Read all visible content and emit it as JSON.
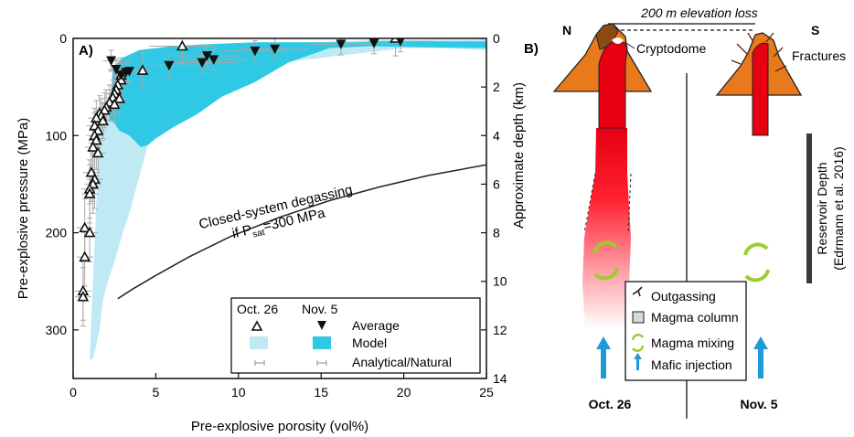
{
  "chart_data": {
    "type": "scatter",
    "panel_label": "A)",
    "xlabel": "Pre-explosive porosity (vol%)",
    "ylabel": "Pre-explosive pressure (MPa)",
    "y2label": "Approximate depth (km)",
    "xlim": [
      0,
      25
    ],
    "ylim": [
      0,
      350
    ],
    "y2lim": [
      0,
      14
    ],
    "x_ticks": [
      0,
      5,
      10,
      15,
      20,
      25
    ],
    "y_ticks": [
      0,
      100,
      200,
      300
    ],
    "y2_ticks": [
      0,
      2,
      4,
      6,
      8,
      10,
      12,
      14
    ],
    "y_inverted": true,
    "colors": {
      "oct26_model": "#bfeaf4",
      "nov5_model": "#2fc9e6",
      "curve": "#222222",
      "error_bar": "#a8a8a8"
    },
    "closed_system_curve": {
      "label_line1": "Closed-system degassing",
      "label_line2_prefix": "if P",
      "label_line2_sub": "sat",
      "label_line2_suffix": "=300 MPa",
      "x": [
        2.7,
        3.6,
        5.0,
        7.0,
        9.5,
        12.5,
        15.5,
        18.5,
        21.5,
        25.0
      ],
      "y": [
        268,
        258,
        244,
        225,
        204,
        184,
        167,
        153,
        141,
        130
      ]
    },
    "oct26_model_envelope": {
      "x": [
        1.0,
        1.6,
        2.3,
        3.0,
        4.0,
        5.0,
        7.0,
        10.0,
        14.0,
        18.0,
        25.0,
        25.0,
        22.0,
        20.0,
        18.0,
        15.0,
        12.0,
        9.0,
        7.0,
        5.0,
        4.5,
        4.2,
        3.8,
        3.4,
        3.0,
        2.5,
        2.1,
        1.8,
        1.6,
        1.2
      ],
      "y": [
        330,
        90,
        50,
        35,
        20,
        15,
        10,
        6,
        4,
        2,
        1,
        12,
        10,
        10,
        14,
        20,
        26,
        36,
        55,
        78,
        110,
        130,
        155,
        180,
        200,
        230,
        250,
        270,
        300,
        330
      ]
    },
    "nov5_model_envelope": {
      "x": [
        2.2,
        2.4,
        3.0,
        4.0,
        6.0,
        8.0,
        11.0,
        14.0,
        17.0,
        20.0,
        25.0,
        25.0,
        21.0,
        18.0,
        15.5,
        13.0,
        11.0,
        9.0,
        7.5,
        6.0,
        5.0,
        4.5,
        4.1,
        3.4,
        2.8,
        2.4
      ],
      "y": [
        85,
        30,
        20,
        12,
        8,
        6,
        4,
        4,
        4,
        3,
        3,
        10,
        9,
        8,
        10,
        25,
        45,
        60,
        78,
        92,
        103,
        110,
        112,
        100,
        95,
        85
      ]
    },
    "oct26_average": [
      [
        19.5,
        0
      ],
      [
        6.6,
        8
      ],
      [
        4.2,
        33
      ],
      [
        2.9,
        38
      ],
      [
        2.9,
        43
      ],
      [
        2.7,
        48
      ],
      [
        2.6,
        53
      ],
      [
        2.5,
        57
      ],
      [
        2.4,
        61
      ],
      [
        2.8,
        62
      ],
      [
        2.2,
        66
      ],
      [
        2.5,
        68
      ],
      [
        2.0,
        71
      ],
      [
        1.9,
        74
      ],
      [
        1.6,
        77
      ],
      [
        1.7,
        80
      ],
      [
        1.4,
        82
      ],
      [
        1.8,
        85
      ],
      [
        1.3,
        90
      ],
      [
        1.5,
        95
      ],
      [
        1.3,
        100
      ],
      [
        1.4,
        105
      ],
      [
        1.2,
        112
      ],
      [
        1.5,
        118
      ],
      [
        1.1,
        138
      ],
      [
        1.3,
        145
      ],
      [
        1.2,
        150
      ],
      [
        1.0,
        155
      ],
      [
        1.0,
        160
      ],
      [
        0.7,
        195
      ],
      [
        1.0,
        200
      ],
      [
        0.7,
        225
      ],
      [
        0.6,
        260
      ],
      [
        0.6,
        266
      ]
    ],
    "nov5_average": [
      [
        16.2,
        6
      ],
      [
        18.2,
        5
      ],
      [
        19.8,
        3
      ],
      [
        12.2,
        11
      ],
      [
        11.0,
        13
      ],
      [
        8.1,
        18
      ],
      [
        8.5,
        22
      ],
      [
        7.8,
        25
      ],
      [
        5.8,
        28
      ],
      [
        3.4,
        34
      ],
      [
        3.2,
        35
      ],
      [
        2.9,
        38
      ],
      [
        2.3,
        23
      ],
      [
        2.6,
        32
      ]
    ],
    "legend": {
      "header_oct": "Oct. 26",
      "header_nov": "Nov. 5",
      "rows": [
        "Average",
        "Model",
        "Analytical/Natural"
      ]
    }
  },
  "diagram": {
    "panel_label": "B)",
    "north_label": "N",
    "south_label": "S",
    "elevation_label": "200 m elevation loss",
    "cryptodome_label": "Cryptodome",
    "fractures_label": "Fractures",
    "reservoir_line1": "Reservoir Depth",
    "reservoir_line2": "(Edrmann et al. 2016)",
    "oct_label": "Oct. 26",
    "nov_label": "Nov. 5",
    "legend": {
      "outgassing": "Outgassing",
      "magma_column": "Magma column",
      "magma_mixing": "Magma mixing",
      "mafic_injection": "Mafic injection"
    }
  }
}
